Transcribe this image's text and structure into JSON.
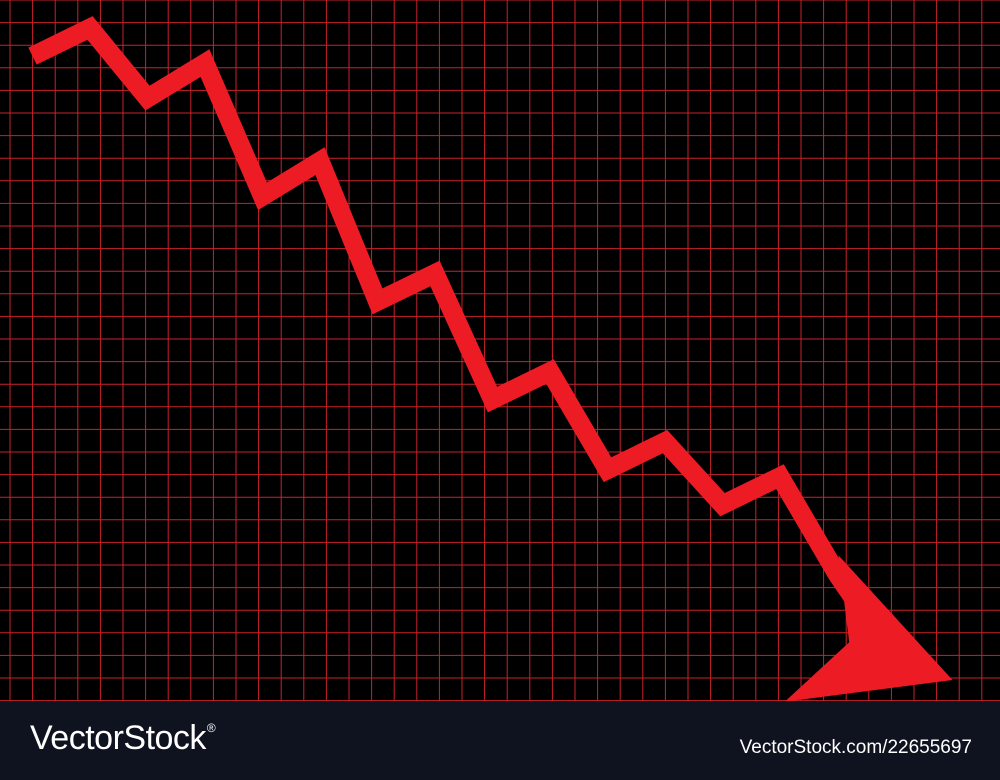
{
  "chart_data": {
    "type": "line",
    "title": "",
    "xlabel": "",
    "ylabel": "",
    "x": [
      1,
      2,
      3,
      4,
      5,
      6,
      7,
      8,
      9,
      10,
      11,
      12,
      13,
      14,
      15,
      16,
      17
    ],
    "series": [
      {
        "values": [
          92,
          96,
          86,
          91,
          72,
          77,
          57,
          61,
          43,
          47,
          33,
          37,
          28,
          32,
          18,
          6,
          3
        ]
      }
    ],
    "xlim": [
      0,
      18
    ],
    "ylim": [
      0,
      100
    ],
    "grid": true,
    "direction": "downward trend ending in arrowhead"
  },
  "colors": {
    "background": "#000000",
    "grid": "#c8222a",
    "line": "#ed1c24",
    "footer": "#0f1320"
  },
  "footer": {
    "logo": "VectorStock",
    "logo_mark": "®",
    "image_id": "VectorStock.com/22655697"
  }
}
